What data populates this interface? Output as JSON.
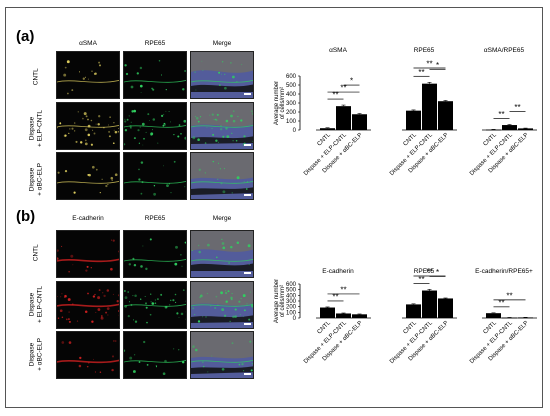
{
  "panels": [
    {
      "label": "(a)",
      "micro_columns": [
        "αSMA",
        "RPE65",
        "Merge"
      ],
      "micro_rows": [
        "CNTL",
        "Dispase\n+ ELP-CNTL",
        "Dispase\n+ αBC-ELP"
      ],
      "colors": {
        "channel1": "#e0d060",
        "channel2": "#30d060",
        "nuclei": "#4050c0"
      }
    },
    {
      "label": "(b)",
      "micro_columns": [
        "E-cadherin",
        "RPE65",
        "Merge"
      ],
      "micro_rows": [
        "CNTL",
        "Dispase\n+ ELP-CNTL",
        "Dispase\n+ αBC-ELP"
      ],
      "colors": {
        "channel1": "#d02020",
        "channel2": "#30d060",
        "nuclei": "#4050c0"
      }
    }
  ],
  "chart_data": [
    {
      "type": "bar",
      "ylabel": "Average number\nof cells/mm²",
      "ylim": [
        0,
        600
      ],
      "yticks": [
        0,
        100,
        200,
        300,
        400,
        500,
        600
      ],
      "categories": [
        "CNTL",
        "Dispase + ELP-CNTL",
        "Dispase + αBC-ELP"
      ],
      "groups": [
        {
          "title": "αSMA",
          "values": [
            20,
            265,
            175
          ],
          "errors": [
            5,
            12,
            8
          ],
          "sig": [
            {
              "from": 0,
              "to": 1,
              "label": "**"
            },
            {
              "from": 0,
              "to": 2,
              "label": "**"
            },
            {
              "from": 1,
              "to": 2,
              "label": "*"
            }
          ]
        },
        {
          "title": "RPE65",
          "values": [
            215,
            515,
            320
          ],
          "errors": [
            8,
            15,
            8
          ],
          "sig": [
            {
              "from": 0,
              "to": 1,
              "label": "**"
            },
            {
              "from": 1,
              "to": 2,
              "label": "*"
            },
            {
              "from": 0,
              "to": 2,
              "label": "**"
            }
          ]
        },
        {
          "title": "αSMA/RPE65",
          "values": [
            5,
            55,
            18
          ],
          "errors": [
            2,
            6,
            3
          ],
          "sig": [
            {
              "from": 0,
              "to": 1,
              "label": "**"
            },
            {
              "from": 1,
              "to": 2,
              "label": "**"
            }
          ]
        }
      ]
    },
    {
      "type": "bar",
      "ylabel": "Average number\nof cells/mm²",
      "ylim": [
        0,
        600
      ],
      "yticks": [
        0,
        100,
        200,
        300,
        400,
        500,
        600
      ],
      "categories": [
        "CNTL",
        "Dispase + ELP-CNTL",
        "Dispase + αBC-ELP"
      ],
      "groups": [
        {
          "title": "E-cadherin",
          "values": [
            185,
            80,
            65
          ],
          "errors": [
            10,
            8,
            6
          ],
          "sig": [
            {
              "from": 0,
              "to": 1,
              "label": "**"
            },
            {
              "from": 0,
              "to": 2,
              "label": "**"
            }
          ]
        },
        {
          "title": "RPE65",
          "values": [
            240,
            485,
            345
          ],
          "errors": [
            10,
            20,
            8
          ],
          "sig": [
            {
              "from": 0,
              "to": 1,
              "label": "**"
            },
            {
              "from": 1,
              "to": 2,
              "label": "*"
            },
            {
              "from": 0,
              "to": 2,
              "label": "**"
            }
          ]
        },
        {
          "title": "E-cadherin/RPE65+",
          "values": [
            85,
            8,
            10
          ],
          "errors": [
            6,
            2,
            2
          ],
          "sig": [
            {
              "from": 0,
              "to": 1,
              "label": "**"
            },
            {
              "from": 0,
              "to": 2,
              "label": "**"
            }
          ]
        }
      ]
    }
  ]
}
